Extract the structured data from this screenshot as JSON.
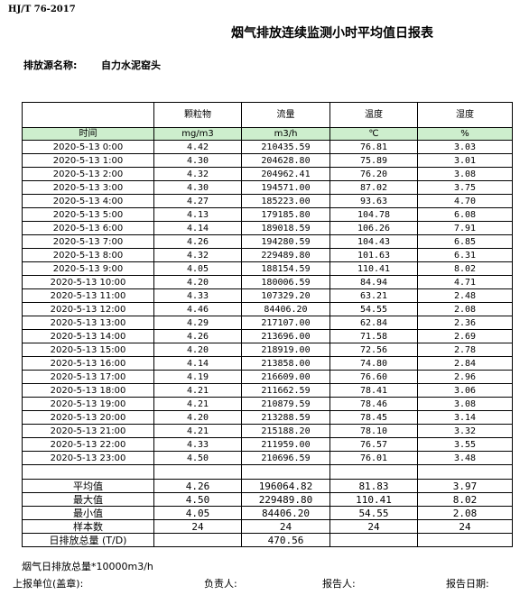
{
  "header": {
    "std_code": "HJ/T  76-2017",
    "title": "烟气排放连续监测小时平均值日报表",
    "source_label": "排放源名称:",
    "source_value": "自力水泥窑头"
  },
  "table": {
    "columns": [
      "颗粒物",
      "流量",
      "温度",
      "湿度"
    ],
    "time_label": "时间",
    "units": [
      "mg/m3",
      "m3/h",
      "℃",
      "%"
    ],
    "rows": [
      [
        "2020-5-13  0:00",
        "4.42",
        "210435.59",
        "76.81",
        "3.03"
      ],
      [
        "2020-5-13  1:00",
        "4.30",
        "204628.80",
        "75.89",
        "3.01"
      ],
      [
        "2020-5-13  2:00",
        "4.32",
        "204962.41",
        "76.20",
        "3.08"
      ],
      [
        "2020-5-13  3:00",
        "4.30",
        "194571.00",
        "87.02",
        "3.75"
      ],
      [
        "2020-5-13  4:00",
        "4.27",
        "185223.00",
        "93.63",
        "4.70"
      ],
      [
        "2020-5-13  5:00",
        "4.13",
        "179185.80",
        "104.78",
        "6.08"
      ],
      [
        "2020-5-13  6:00",
        "4.14",
        "189018.59",
        "106.26",
        "7.91"
      ],
      [
        "2020-5-13  7:00",
        "4.26",
        "194280.59",
        "104.43",
        "6.85"
      ],
      [
        "2020-5-13  8:00",
        "4.32",
        "229489.80",
        "101.63",
        "6.31"
      ],
      [
        "2020-5-13  9:00",
        "4.05",
        "188154.59",
        "110.41",
        "8.02"
      ],
      [
        "2020-5-13  10:00",
        "4.20",
        "180006.59",
        "84.94",
        "4.71"
      ],
      [
        "2020-5-13  11:00",
        "4.33",
        "107329.20",
        "63.21",
        "2.48"
      ],
      [
        "2020-5-13  12:00",
        "4.46",
        "84406.20",
        "54.55",
        "2.08"
      ],
      [
        "2020-5-13  13:00",
        "4.29",
        "217107.00",
        "62.84",
        "2.36"
      ],
      [
        "2020-5-13  14:00",
        "4.26",
        "213696.00",
        "71.58",
        "2.69"
      ],
      [
        "2020-5-13  15:00",
        "4.20",
        "218919.00",
        "72.56",
        "2.78"
      ],
      [
        "2020-5-13  16:00",
        "4.14",
        "213858.00",
        "74.80",
        "2.84"
      ],
      [
        "2020-5-13  17:00",
        "4.19",
        "216609.00",
        "76.60",
        "2.96"
      ],
      [
        "2020-5-13  18:00",
        "4.21",
        "211662.59",
        "78.41",
        "3.06"
      ],
      [
        "2020-5-13  19:00",
        "4.21",
        "210879.59",
        "78.46",
        "3.08"
      ],
      [
        "2020-5-13  20:00",
        "4.20",
        "213288.59",
        "78.45",
        "3.14"
      ],
      [
        "2020-5-13  21:00",
        "4.21",
        "215188.20",
        "78.10",
        "3.32"
      ],
      [
        "2020-5-13  22:00",
        "4.33",
        "211959.00",
        "76.57",
        "3.55"
      ],
      [
        "2020-5-13  23:00",
        "4.50",
        "210696.59",
        "76.01",
        "3.48"
      ]
    ],
    "stats": [
      [
        "平均值",
        "4.26",
        "196064.82",
        "81.83",
        "3.97"
      ],
      [
        "最大值",
        "4.50",
        "229489.80",
        "110.41",
        "8.02"
      ],
      [
        "最小值",
        "4.05",
        "84406.20",
        "54.55",
        "2.08"
      ],
      [
        "样本数",
        "24",
        "24",
        "24",
        "24"
      ]
    ],
    "daily_total_label": "日排放总量 (T/D)",
    "daily_total_value": "470.56"
  },
  "footer": {
    "note": "烟气日排放总量*10000m3/h",
    "unit_label": "上报单位(盖章):",
    "person_label": "负责人:",
    "reporter_label": "报告人:",
    "date_label": "报告日期:"
  }
}
